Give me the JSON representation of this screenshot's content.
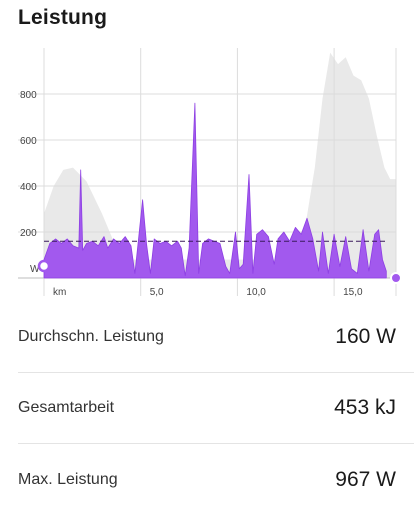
{
  "page": {
    "title": "Leistung"
  },
  "colors": {
    "power": "#a259ee",
    "power_stroke": "#8d3fe3",
    "elevation": "#e9e9e9",
    "grid": "#dcdcdc",
    "avg_line": "#3a1a5c"
  },
  "chart_data": {
    "type": "area",
    "x_unit_label": "km",
    "y_unit_label": "W",
    "xlim": [
      0,
      18.2
    ],
    "ylim": [
      0,
      1000
    ],
    "y_ticks": [
      200,
      400,
      600,
      800
    ],
    "x_ticks": [
      5.0,
      10.0,
      15.0
    ],
    "x_tick_labels": [
      "5,0",
      "10,0",
      "15,0"
    ],
    "average": 160,
    "series": [
      {
        "kind": "power",
        "points": [
          [
            0,
            80
          ],
          [
            0.3,
            150
          ],
          [
            0.6,
            170
          ],
          [
            0.9,
            150
          ],
          [
            1.2,
            170
          ],
          [
            1.5,
            140
          ],
          [
            1.8,
            130
          ],
          [
            1.9,
            470
          ],
          [
            2.0,
            120
          ],
          [
            2.2,
            150
          ],
          [
            2.5,
            160
          ],
          [
            2.8,
            140
          ],
          [
            3.1,
            180
          ],
          [
            3.3,
            130
          ],
          [
            3.6,
            170
          ],
          [
            3.9,
            150
          ],
          [
            4.2,
            180
          ],
          [
            4.5,
            140
          ],
          [
            4.7,
            20
          ],
          [
            4.9,
            180
          ],
          [
            5.1,
            340
          ],
          [
            5.3,
            150
          ],
          [
            5.5,
            20
          ],
          [
            5.7,
            170
          ],
          [
            6.0,
            150
          ],
          [
            6.3,
            160
          ],
          [
            6.6,
            140
          ],
          [
            6.9,
            160
          ],
          [
            7.1,
            130
          ],
          [
            7.3,
            10
          ],
          [
            7.5,
            130
          ],
          [
            7.8,
            760
          ],
          [
            8.0,
            20
          ],
          [
            8.2,
            150
          ],
          [
            8.5,
            170
          ],
          [
            8.8,
            160
          ],
          [
            9.1,
            150
          ],
          [
            9.4,
            50
          ],
          [
            9.6,
            20
          ],
          [
            9.9,
            200
          ],
          [
            10.1,
            40
          ],
          [
            10.3,
            60
          ],
          [
            10.6,
            450
          ],
          [
            10.8,
            20
          ],
          [
            11.0,
            190
          ],
          [
            11.3,
            210
          ],
          [
            11.6,
            180
          ],
          [
            11.9,
            60
          ],
          [
            12.1,
            170
          ],
          [
            12.4,
            200
          ],
          [
            12.7,
            160
          ],
          [
            13.0,
            220
          ],
          [
            13.3,
            190
          ],
          [
            13.6,
            260
          ],
          [
            13.9,
            170
          ],
          [
            14.2,
            30
          ],
          [
            14.4,
            200
          ],
          [
            14.7,
            20
          ],
          [
            15.0,
            190
          ],
          [
            15.3,
            50
          ],
          [
            15.6,
            180
          ],
          [
            15.9,
            40
          ],
          [
            16.2,
            20
          ],
          [
            16.5,
            210
          ],
          [
            16.8,
            30
          ],
          [
            17.1,
            190
          ],
          [
            17.3,
            210
          ],
          [
            17.5,
            80
          ],
          [
            17.7,
            30
          ]
        ]
      },
      {
        "kind": "elevation",
        "points": [
          [
            0,
            0
          ],
          [
            0,
            0.28
          ],
          [
            0.5,
            0.4
          ],
          [
            1.0,
            0.47
          ],
          [
            1.5,
            0.48
          ],
          [
            2.2,
            0.42
          ],
          [
            3.0,
            0.28
          ],
          [
            3.6,
            0.16
          ],
          [
            4.0,
            0.12
          ],
          [
            4.5,
            0.08
          ],
          [
            13.0,
            0.08
          ],
          [
            13.5,
            0.22
          ],
          [
            14.0,
            0.48
          ],
          [
            14.4,
            0.78
          ],
          [
            14.8,
            0.98
          ],
          [
            15.2,
            0.93
          ],
          [
            15.6,
            0.96
          ],
          [
            16.0,
            0.88
          ],
          [
            16.4,
            0.86
          ],
          [
            16.8,
            0.78
          ],
          [
            17.2,
            0.62
          ],
          [
            17.6,
            0.48
          ],
          [
            17.9,
            0.43
          ],
          [
            18.2,
            0.43
          ],
          [
            18.2,
            0
          ]
        ]
      }
    ]
  },
  "stats": [
    {
      "label": "Durchschn. Leistung",
      "value": "160 W"
    },
    {
      "label": "Gesamtarbeit",
      "value": "453 kJ"
    },
    {
      "label": "Max. Leistung",
      "value": "967 W"
    }
  ]
}
